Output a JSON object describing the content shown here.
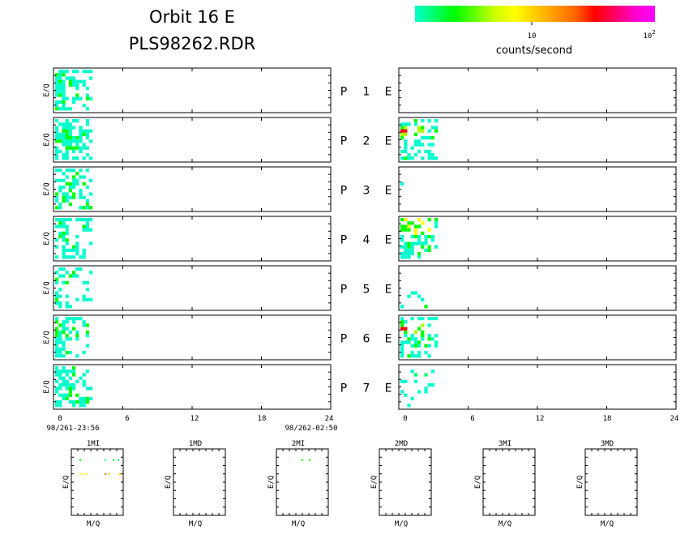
{
  "title": {
    "line1": "Orbit 16 E",
    "line2": "PLS98262.RDR"
  },
  "colorbar": {
    "tick_mid": "10",
    "tick_max_base": "10",
    "tick_max_exp": "2",
    "label": "counts/second",
    "colors": [
      "#00ffcc",
      "#00ff66",
      "#00ff00",
      "#66ff00",
      "#ccff00",
      "#ffff00",
      "#ffcc00",
      "#ff9900",
      "#ff6600",
      "#ff0000",
      "#ff0066",
      "#ff00cc",
      "#ff00ff"
    ]
  },
  "chart_data": {
    "type": "heatmap",
    "ylabel": "E/Q",
    "x_ticks": [
      "0",
      "6",
      "12",
      "18",
      "24"
    ],
    "start_time": "98/261-23:56",
    "end_time": "98/262-02:50",
    "rows": [
      {
        "label": "P",
        "number": "1",
        "suffix": "E"
      },
      {
        "label": "P",
        "number": "2",
        "suffix": "E"
      },
      {
        "label": "P",
        "number": "3",
        "suffix": "E"
      },
      {
        "label": "P",
        "number": "4",
        "suffix": "E"
      },
      {
        "label": "P",
        "number": "5",
        "suffix": "E"
      },
      {
        "label": "P",
        "number": "6",
        "suffix": "E"
      },
      {
        "label": "P",
        "number": "7",
        "suffix": "E"
      }
    ],
    "mass_panels": {
      "xlabel": "M/Q",
      "ylabel": "E/Q",
      "titles": [
        "1MI",
        "1MD",
        "2MI",
        "2MD",
        "3MI",
        "3MD"
      ]
    }
  }
}
